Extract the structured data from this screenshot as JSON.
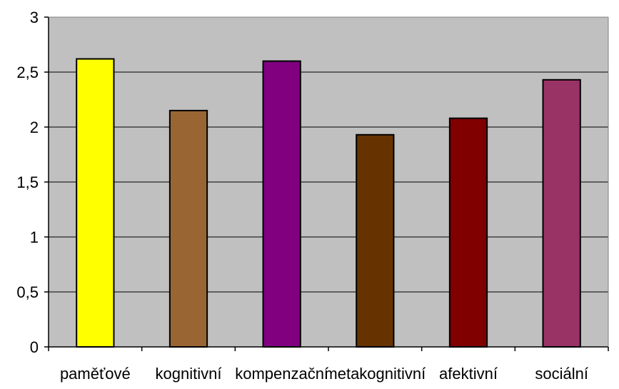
{
  "chart_data": {
    "type": "bar",
    "categories": [
      "paměťové",
      "kognitivní",
      "kompenzační",
      "metakognitivní",
      "afektivní",
      "sociální"
    ],
    "values": [
      2.62,
      2.15,
      2.6,
      1.93,
      2.08,
      2.43
    ],
    "colors": [
      "#ffff00",
      "#996633",
      "#800080",
      "#663300",
      "#800000",
      "#993366"
    ],
    "ylim": [
      0,
      3
    ],
    "y_ticks": [
      0,
      0.5,
      1,
      1.5,
      2,
      2.5,
      3
    ],
    "y_tick_labels": [
      "0",
      "0,5",
      "1",
      "1,5",
      "2",
      "2,5",
      "3"
    ],
    "grid": true,
    "plot_background": "#c0c0c0",
    "title": "",
    "xlabel": "",
    "ylabel": ""
  }
}
